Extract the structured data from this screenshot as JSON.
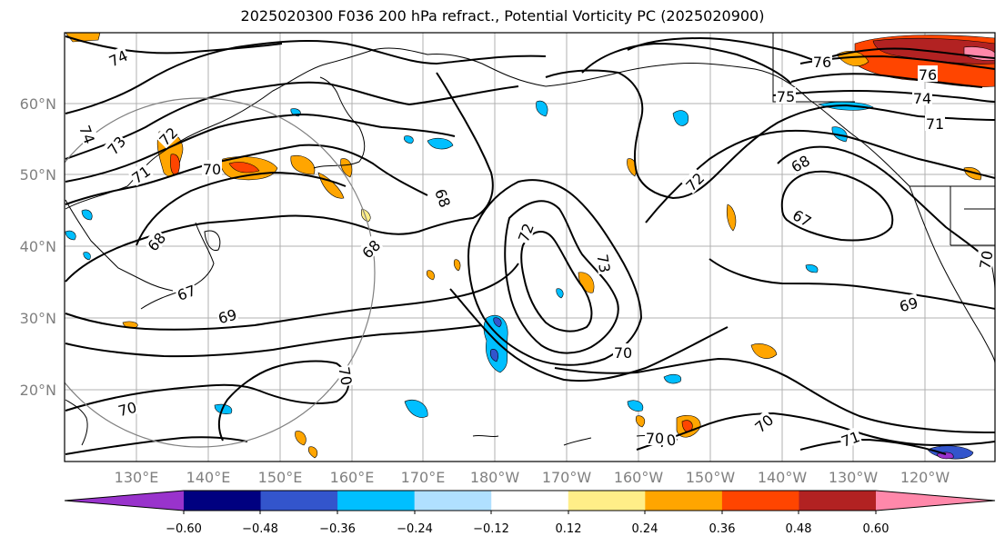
{
  "title": "2025020300 F036 200 hPa refract., Potential Vorticity PC (2025020900)",
  "lat_labels": [
    "60°N",
    "50°N",
    "40°N",
    "30°N",
    "20°N"
  ],
  "lon_labels": [
    "130°E",
    "140°E",
    "150°E",
    "160°E",
    "170°E",
    "180°W",
    "170°W",
    "160°W",
    "150°W",
    "140°W",
    "130°W",
    "120°W"
  ],
  "colorbar": {
    "colors": [
      "#9933cc",
      "#000080",
      "#3355cc",
      "#00bfff",
      "#b0e0ff",
      "#ffffff",
      "#ffee88",
      "#ffa500",
      "#ff4500",
      "#b22222",
      "#ff88aa"
    ],
    "tick_labels": [
      "−0.60",
      "−0.48",
      "−0.36",
      "−0.24",
      "−0.12",
      "0.12",
      "0.24",
      "0.36",
      "0.48",
      "0.60"
    ]
  },
  "contour_labels": [
    "74",
    "74",
    "73",
    "72",
    "71",
    "70",
    "68",
    "68",
    "67",
    "69",
    "70",
    "68",
    "72",
    "73",
    "70",
    "70",
    "70",
    "72",
    "75",
    "76",
    "76",
    "74",
    "71",
    "68",
    "67",
    "69",
    "70",
    "71",
    "70",
    "70"
  ]
}
